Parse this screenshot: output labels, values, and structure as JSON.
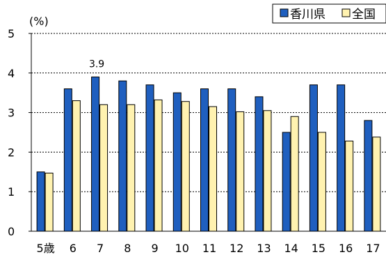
{
  "chart_data": {
    "type": "bar",
    "unit_label": "(%)",
    "categories": [
      "5歳",
      "6",
      "7",
      "8",
      "9",
      "10",
      "11",
      "12",
      "13",
      "14",
      "15",
      "16",
      "17"
    ],
    "series": [
      {
        "name": "香川県",
        "color": "#1f5fbf",
        "values": [
          1.5,
          3.6,
          3.9,
          3.8,
          3.7,
          3.5,
          3.6,
          3.6,
          3.4,
          2.5,
          3.7,
          3.7,
          2.8
        ]
      },
      {
        "name": "全国",
        "color": "#fff2b0",
        "values": [
          1.47,
          3.3,
          3.2,
          3.2,
          3.32,
          3.28,
          3.15,
          3.02,
          3.05,
          2.9,
          2.5,
          2.28,
          2.38
        ]
      }
    ],
    "annotations": [
      {
        "category": "7",
        "text": "3.9"
      }
    ],
    "ylim": [
      0,
      5
    ],
    "yticks": [
      0,
      1,
      2,
      3,
      4,
      5
    ],
    "grid": true,
    "legend_position": "top-right"
  }
}
